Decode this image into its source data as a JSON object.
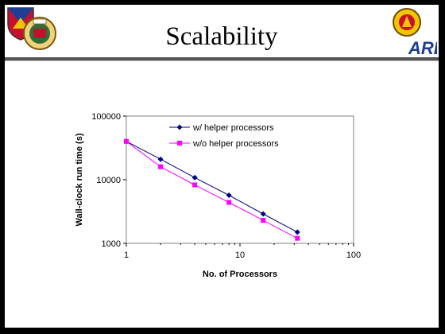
{
  "slide": {
    "title": "Scalability"
  },
  "logos": {
    "left": "army-shield-logo",
    "left2": "unit-seal-logo",
    "right": "army-research-lab-logo",
    "right_text": "ARL"
  },
  "chart_data": {
    "type": "line",
    "xscale": "log",
    "yscale": "log",
    "xlim": [
      1,
      100
    ],
    "ylim": [
      1000,
      100000
    ],
    "xticks": [
      "1",
      "10",
      "100"
    ],
    "yticks": [
      "1000",
      "10000",
      "100000"
    ],
    "xlabel": "No. of Processors",
    "ylabel": "Wall-clock run time (s)",
    "legend_position": "top-right (inside)",
    "grid": "none",
    "series": [
      {
        "name": "w/ helper processors",
        "color": "#000080",
        "marker": "diamond",
        "x": [
          1,
          2,
          4,
          8,
          16,
          32
        ],
        "values": [
          40000,
          21000,
          10800,
          5700,
          2900,
          1500
        ]
      },
      {
        "name": "w/o helper processors",
        "color": "#ff00ff",
        "marker": "square",
        "x": [
          1,
          2,
          4,
          8,
          16,
          32
        ],
        "values": [
          40000,
          16000,
          8300,
          4400,
          2300,
          1200
        ]
      }
    ]
  }
}
